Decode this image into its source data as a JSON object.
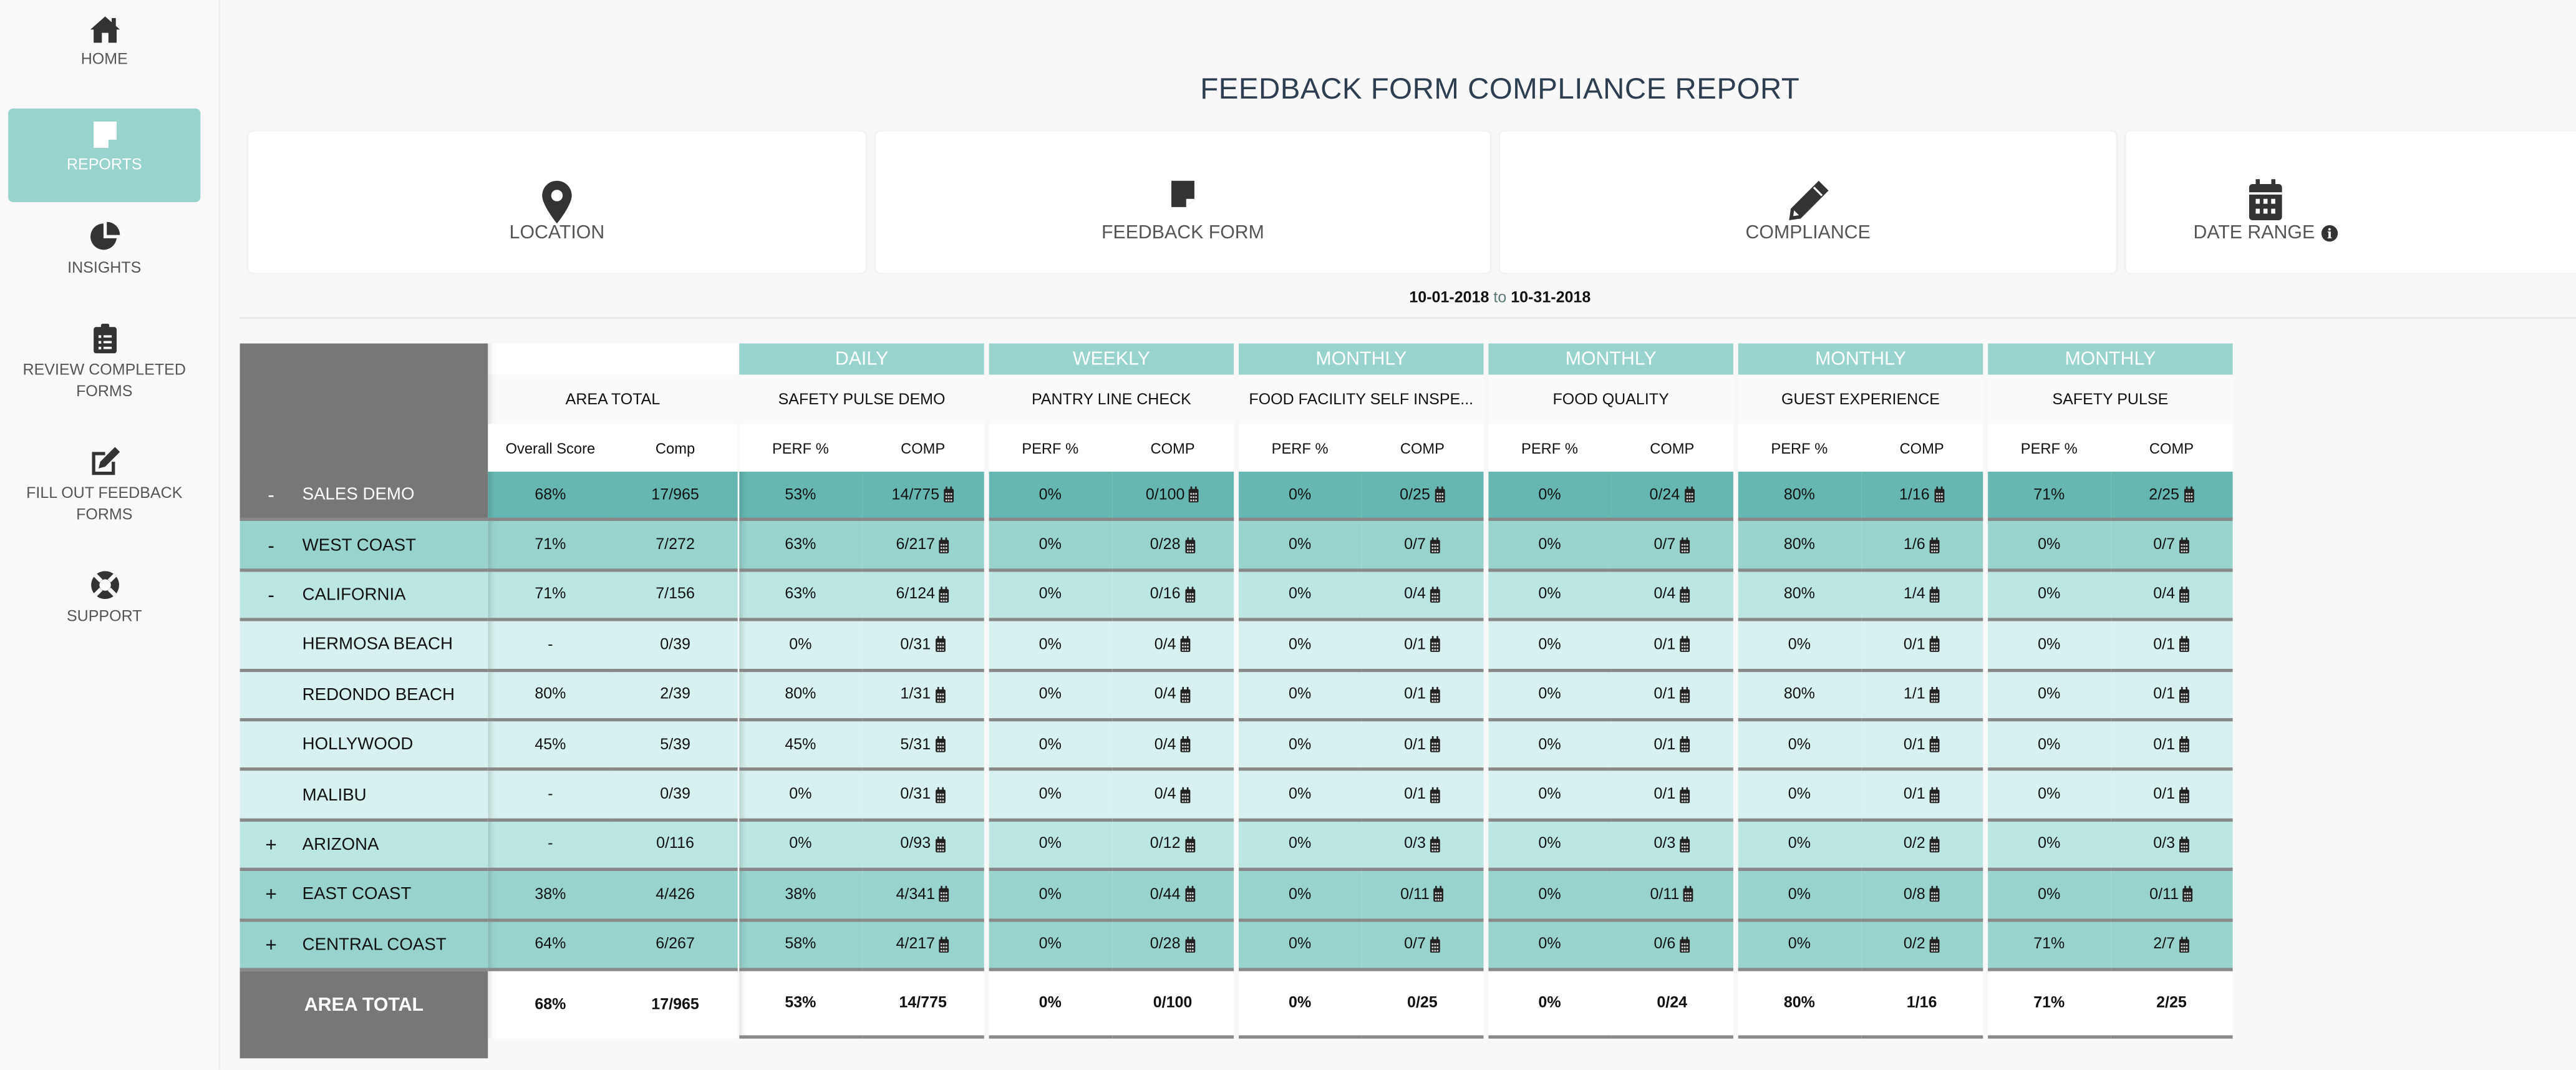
{
  "sidebar": {
    "items": [
      {
        "label": "HOME",
        "icon": "home-icon"
      },
      {
        "label": "REPORTS",
        "icon": "note-icon",
        "active": true
      },
      {
        "label": "INSIGHTS",
        "icon": "pie-chart-icon"
      },
      {
        "label": "REVIEW COMPLETED",
        "label2": "FORMS",
        "icon": "clipboard-list-icon"
      },
      {
        "label": "FILL OUT FEEDBACK",
        "label2": "FORMS",
        "icon": "edit-icon"
      },
      {
        "label": "SUPPORT",
        "icon": "life-ring-icon"
      }
    ]
  },
  "page": {
    "title": "FEEDBACK FORM COMPLIANCE REPORT"
  },
  "filters": [
    {
      "label": "LOCATION",
      "icon": "map-marker-icon"
    },
    {
      "label": "FEEDBACK FORM",
      "icon": "note-icon"
    },
    {
      "label": "COMPLIANCE",
      "icon": "pencil-icon"
    },
    {
      "label": "DATE RANGE",
      "icon": "calendar-icon",
      "info": true
    }
  ],
  "date_range": {
    "start": "10-01-2018",
    "sep": "to",
    "end": "10-31-2018"
  },
  "colors": {
    "accent": "#98d3ce",
    "level0": "#66b7b2",
    "level1": "#98d3ce",
    "level2": "#bce6e2",
    "level3": "#d6f1ef",
    "leftHeader": "#777777"
  },
  "table": {
    "area_header": "AREA TOTAL",
    "area_sub": [
      "Overall Score",
      "Comp"
    ],
    "form_sub": [
      "PERF %",
      "COMP"
    ],
    "forms": [
      {
        "period": "DAILY",
        "name": "SAFETY PULSE DEMO"
      },
      {
        "period": "WEEKLY",
        "name": "PANTRY LINE CHECK"
      },
      {
        "period": "MONTHLY",
        "name": "FOOD FACILITY SELF INSPE..."
      },
      {
        "period": "MONTHLY",
        "name": "FOOD QUALITY"
      },
      {
        "period": "MONTHLY",
        "name": "GUEST EXPERIENCE"
      },
      {
        "period": "MONTHLY",
        "name": "SAFETY PULSE"
      }
    ],
    "rows": [
      {
        "toggle": "-",
        "name": "SALES DEMO",
        "level": 0,
        "score": "68%",
        "comp": "17/965",
        "forms": [
          [
            "53%",
            "14/775"
          ],
          [
            "0%",
            "0/100"
          ],
          [
            "0%",
            "0/25"
          ],
          [
            "0%",
            "0/24"
          ],
          [
            "80%",
            "1/16"
          ],
          [
            "71%",
            "2/25"
          ]
        ]
      },
      {
        "toggle": "-",
        "name": "WEST COAST",
        "level": 1,
        "score": "71%",
        "comp": "7/272",
        "forms": [
          [
            "63%",
            "6/217"
          ],
          [
            "0%",
            "0/28"
          ],
          [
            "0%",
            "0/7"
          ],
          [
            "0%",
            "0/7"
          ],
          [
            "80%",
            "1/6"
          ],
          [
            "0%",
            "0/7"
          ]
        ]
      },
      {
        "toggle": "-",
        "name": "CALIFORNIA",
        "level": 2,
        "score": "71%",
        "comp": "7/156",
        "forms": [
          [
            "63%",
            "6/124"
          ],
          [
            "0%",
            "0/16"
          ],
          [
            "0%",
            "0/4"
          ],
          [
            "0%",
            "0/4"
          ],
          [
            "80%",
            "1/4"
          ],
          [
            "0%",
            "0/4"
          ]
        ]
      },
      {
        "toggle": "",
        "name": "HERMOSA BEACH",
        "level": 3,
        "score": "-",
        "comp": "0/39",
        "forms": [
          [
            "0%",
            "0/31"
          ],
          [
            "0%",
            "0/4"
          ],
          [
            "0%",
            "0/1"
          ],
          [
            "0%",
            "0/1"
          ],
          [
            "0%",
            "0/1"
          ],
          [
            "0%",
            "0/1"
          ]
        ]
      },
      {
        "toggle": "",
        "name": "REDONDO BEACH",
        "level": 3,
        "score": "80%",
        "comp": "2/39",
        "forms": [
          [
            "80%",
            "1/31"
          ],
          [
            "0%",
            "0/4"
          ],
          [
            "0%",
            "0/1"
          ],
          [
            "0%",
            "0/1"
          ],
          [
            "80%",
            "1/1"
          ],
          [
            "0%",
            "0/1"
          ]
        ]
      },
      {
        "toggle": "",
        "name": "HOLLYWOOD",
        "level": 3,
        "score": "45%",
        "comp": "5/39",
        "forms": [
          [
            "45%",
            "5/31"
          ],
          [
            "0%",
            "0/4"
          ],
          [
            "0%",
            "0/1"
          ],
          [
            "0%",
            "0/1"
          ],
          [
            "0%",
            "0/1"
          ],
          [
            "0%",
            "0/1"
          ]
        ]
      },
      {
        "toggle": "",
        "name": "MALIBU",
        "level": 3,
        "score": "-",
        "comp": "0/39",
        "forms": [
          [
            "0%",
            "0/31"
          ],
          [
            "0%",
            "0/4"
          ],
          [
            "0%",
            "0/1"
          ],
          [
            "0%",
            "0/1"
          ],
          [
            "0%",
            "0/1"
          ],
          [
            "0%",
            "0/1"
          ]
        ]
      },
      {
        "toggle": "+",
        "name": "ARIZONA",
        "level": 2,
        "score": "-",
        "comp": "0/116",
        "forms": [
          [
            "0%",
            "0/93"
          ],
          [
            "0%",
            "0/12"
          ],
          [
            "0%",
            "0/3"
          ],
          [
            "0%",
            "0/3"
          ],
          [
            "0%",
            "0/2"
          ],
          [
            "0%",
            "0/3"
          ]
        ]
      },
      {
        "toggle": "+",
        "name": "EAST COAST",
        "level": 1,
        "score": "38%",
        "comp": "4/426",
        "forms": [
          [
            "38%",
            "4/341"
          ],
          [
            "0%",
            "0/44"
          ],
          [
            "0%",
            "0/11"
          ],
          [
            "0%",
            "0/11"
          ],
          [
            "0%",
            "0/8"
          ],
          [
            "0%",
            "0/11"
          ]
        ]
      },
      {
        "toggle": "+",
        "name": "CENTRAL COAST",
        "level": 1,
        "score": "64%",
        "comp": "6/267",
        "forms": [
          [
            "58%",
            "4/217"
          ],
          [
            "0%",
            "0/28"
          ],
          [
            "0%",
            "0/7"
          ],
          [
            "0%",
            "0/6"
          ],
          [
            "0%",
            "0/2"
          ],
          [
            "71%",
            "2/7"
          ]
        ]
      }
    ],
    "total": {
      "label": "AREA TOTAL",
      "score": "68%",
      "comp": "17/965",
      "forms": [
        [
          "53%",
          "14/775"
        ],
        [
          "0%",
          "0/100"
        ],
        [
          "0%",
          "0/25"
        ],
        [
          "0%",
          "0/24"
        ],
        [
          "80%",
          "1/16"
        ],
        [
          "71%",
          "2/25"
        ]
      ]
    }
  }
}
